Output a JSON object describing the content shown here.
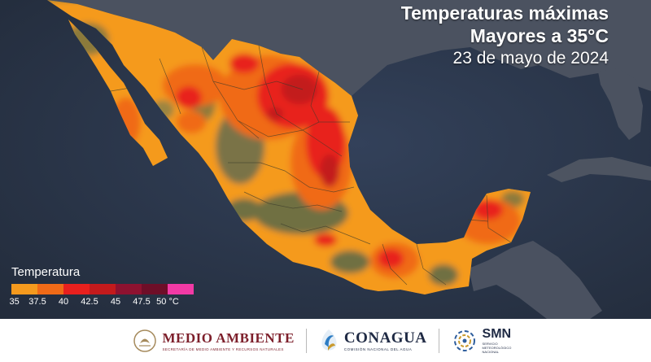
{
  "header": {
    "title_line1": "Temperaturas máximas",
    "title_line2": "Mayores a 35°C",
    "date": "23 de mayo de 2024"
  },
  "legend": {
    "title": "Temperatura",
    "colors": [
      "#f59a1e",
      "#f06a17",
      "#e8201e",
      "#c31a1c",
      "#8e1230",
      "#6e0e28",
      "#f23aa5"
    ],
    "ticks": [
      "35",
      "37.5",
      "40",
      "42.5",
      "45",
      "47.5",
      "50 °C"
    ]
  },
  "footer": {
    "medio_ambiente": {
      "name": "MEDIO AMBIENTE",
      "subtitle": "SECRETARÍA DE MEDIO AMBIENTE Y RECURSOS NATURALES",
      "icon": "mexico-eagle-seal-icon"
    },
    "conagua": {
      "name": "CONAGUA",
      "subtitle": "COMISIÓN NACIONAL DEL AGUA",
      "icon": "water-drop-logo-icon"
    },
    "smn": {
      "name": "SMN",
      "subtitle": "SERVICIO METEOROLÓGICO NACIONAL",
      "icon": "smn-spiral-logo-icon"
    }
  }
}
